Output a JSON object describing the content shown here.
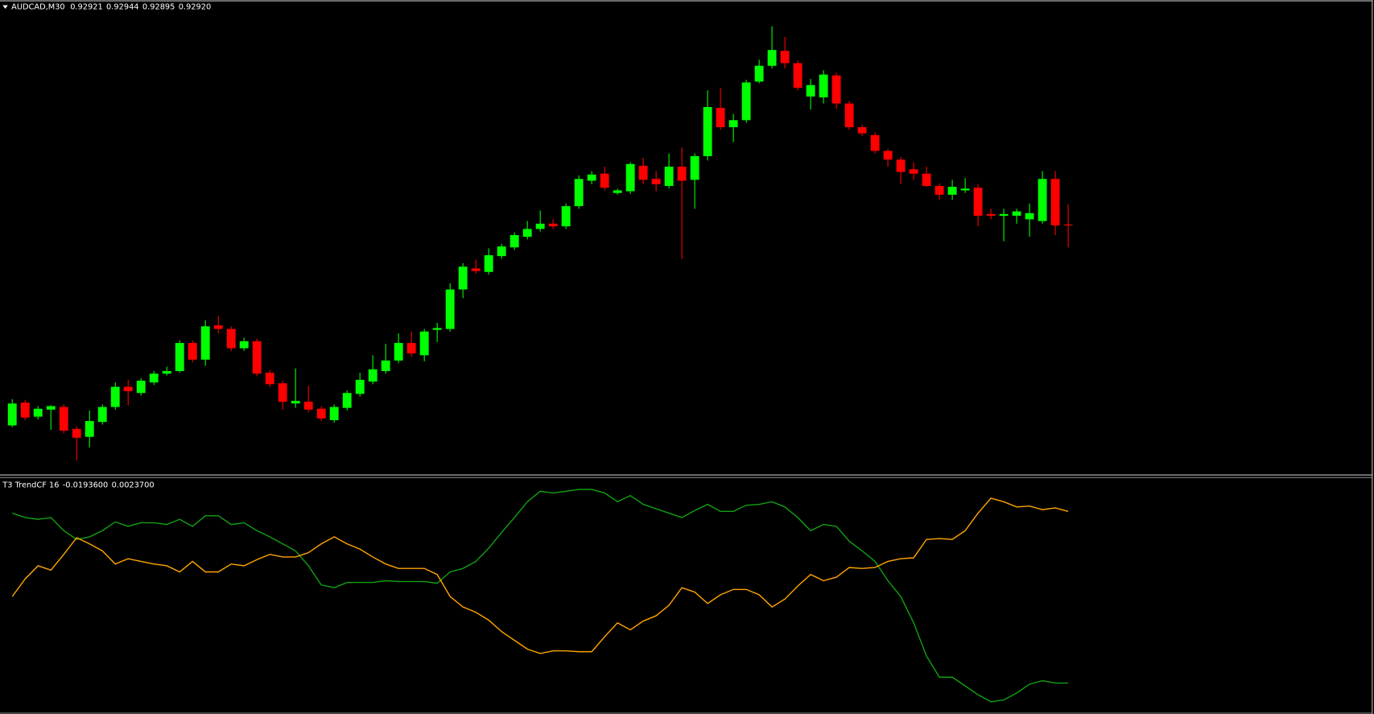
{
  "chart_data": [
    {
      "type": "candlestick",
      "title": "AUDCAD,M30",
      "header_values": [
        0.92921,
        0.92944,
        0.92895,
        {
          "value": 0.9292,
          "label": "0.92920"
        }
      ],
      "up_color": "#00ff00",
      "down_color": "#ff0000",
      "ylim": [
        0.92637,
        0.93177
      ],
      "open": [
        0.92692,
        0.92718,
        0.92702,
        0.9271,
        0.92713,
        0.92688,
        0.92679,
        0.92696,
        0.92713,
        0.92736,
        0.92729,
        0.92741,
        0.92751,
        0.92754,
        0.92786,
        0.92767,
        0.92806,
        0.92802,
        0.9278,
        0.92788,
        0.92752,
        0.9274,
        0.92717,
        0.92719,
        0.92711,
        0.92698,
        0.92712,
        0.92728,
        0.92742,
        0.92754,
        0.92766,
        0.92786,
        0.92772,
        0.92801,
        0.92802,
        0.92847,
        0.92871,
        0.92867,
        0.92885,
        0.92895,
        0.92907,
        0.92916,
        0.92922,
        0.92919,
        0.92942,
        0.92971,
        0.92979,
        0.92957,
        0.92959,
        0.92988,
        0.92973,
        0.92965,
        0.92987,
        0.92972,
        0.92999,
        0.93054,
        0.93032,
        0.9304,
        0.93084,
        0.93102,
        0.93119,
        0.93105,
        0.93067,
        0.93066,
        0.93091,
        0.93059,
        0.93032,
        0.93023,
        0.93005,
        0.92995,
        0.92984,
        0.92979,
        0.92965,
        0.92955,
        0.9296,
        0.92963,
        0.92933,
        0.92931,
        0.92931,
        0.92927,
        0.92925,
        0.92973,
        0.92921
      ],
      "high": [
        0.92722,
        0.92721,
        0.92714,
        0.92715,
        0.92716,
        0.92691,
        0.92709,
        0.92716,
        0.92741,
        0.92744,
        0.92746,
        0.92754,
        0.92759,
        0.92789,
        0.92789,
        0.92812,
        0.92817,
        0.92805,
        0.92792,
        0.92791,
        0.92755,
        0.92743,
        0.92757,
        0.92737,
        0.92714,
        0.92716,
        0.92732,
        0.92752,
        0.92772,
        0.92785,
        0.92797,
        0.92799,
        0.92802,
        0.92809,
        0.92854,
        0.92877,
        0.92881,
        0.92894,
        0.92899,
        0.92912,
        0.92925,
        0.92937,
        0.92927,
        0.92945,
        0.92977,
        0.92982,
        0.92987,
        0.92962,
        0.92992,
        0.92997,
        0.92982,
        0.93002,
        0.93009,
        0.93002,
        0.93074,
        0.93077,
        0.93047,
        0.93086,
        0.93109,
        0.93147,
        0.93135,
        0.93108,
        0.93087,
        0.93097,
        0.93094,
        0.93062,
        0.93035,
        0.93026,
        0.93007,
        0.92998,
        0.92992,
        0.92987,
        0.92968,
        0.92972,
        0.92974,
        0.92967,
        0.92939,
        0.92939,
        0.92939,
        0.92945,
        0.92982,
        0.92982,
        0.92944
      ],
      "low": [
        0.9269,
        0.92698,
        0.92699,
        0.92687,
        0.92683,
        0.92652,
        0.92667,
        0.92693,
        0.9271,
        0.92715,
        0.92726,
        0.92738,
        0.92749,
        0.92752,
        0.92764,
        0.9276,
        0.92797,
        0.92777,
        0.92777,
        0.92748,
        0.92736,
        0.9271,
        0.92712,
        0.92707,
        0.92697,
        0.92695,
        0.92709,
        0.92725,
        0.92739,
        0.92751,
        0.92763,
        0.9277,
        0.92765,
        0.92787,
        0.92799,
        0.92837,
        0.92865,
        0.92864,
        0.92882,
        0.92892,
        0.92904,
        0.92913,
        0.92916,
        0.92916,
        0.92939,
        0.92967,
        0.9296,
        0.92955,
        0.92956,
        0.92967,
        0.92959,
        0.92962,
        0.92882,
        0.92939,
        0.92994,
        0.93029,
        0.93015,
        0.93037,
        0.93082,
        0.93099,
        0.93099,
        0.93074,
        0.93052,
        0.93059,
        0.93053,
        0.93029,
        0.93022,
        0.93002,
        0.92987,
        0.92967,
        0.92972,
        0.92964,
        0.92949,
        0.92949,
        0.92957,
        0.92919,
        0.92927,
        0.92902,
        0.92922,
        0.92907,
        0.92922,
        0.92909,
        0.92895
      ],
      "close": [
        0.92717,
        0.92701,
        0.92711,
        0.92714,
        0.92686,
        0.92678,
        0.92697,
        0.92713,
        0.92736,
        0.92731,
        0.92743,
        0.92751,
        0.92754,
        0.92786,
        0.92767,
        0.92805,
        0.92802,
        0.9278,
        0.92788,
        0.92751,
        0.92739,
        0.92719,
        0.9272,
        0.9271,
        0.927,
        0.92713,
        0.92729,
        0.92744,
        0.92756,
        0.92766,
        0.92786,
        0.92774,
        0.92799,
        0.92803,
        0.92847,
        0.92873,
        0.92868,
        0.92886,
        0.92896,
        0.92909,
        0.92916,
        0.92922,
        0.92919,
        0.92942,
        0.92973,
        0.92978,
        0.92963,
        0.9296,
        0.9299,
        0.92972,
        0.92967,
        0.92987,
        0.92971,
        0.92999,
        0.93055,
        0.93032,
        0.9304,
        0.93083,
        0.93102,
        0.9312,
        0.93105,
        0.93077,
        0.9308,
        0.93092,
        0.93059,
        0.93032,
        0.93025,
        0.93005,
        0.92995,
        0.92981,
        0.92979,
        0.92965,
        0.92955,
        0.92964,
        0.92962,
        0.92931,
        0.92931,
        0.92933,
        0.92936,
        0.92934,
        0.92973,
        0.9292,
        0.9292
      ]
    },
    {
      "type": "line",
      "title": "T3 TrendCF 16",
      "header_values": [
        {
          "value": -0.01936,
          "label": "-0.0193600"
        },
        {
          "value": 0.00237,
          "label": "0.0023700"
        }
      ],
      "ylim": [
        -0.02305,
        0.00659
      ],
      "series": [
        {
          "color": "#11a011",
          "values": [
            0.00215,
            0.00159,
            0.00137,
            0.00159,
            -7e-05,
            -0.00118,
            -0.00085,
            -7e-05,
            0.00104,
            0.00048,
            0.00093,
            0.00093,
            0.00071,
            0.00137,
            0.00048,
            0.00182,
            0.00182,
            0.00071,
            0.00093,
            -7e-05,
            -0.00085,
            -0.00174,
            -0.00263,
            -0.00451,
            -0.00695,
            -0.00729,
            -0.00662,
            -0.00662,
            -0.00662,
            -0.0064,
            -0.00651,
            -0.00651,
            -0.00651,
            -0.00673,
            -0.00529,
            -0.00485,
            -0.00396,
            -0.00229,
            -0.00029,
            0.00159,
            0.00359,
            0.00492,
            0.0047,
            0.00492,
            0.00515,
            0.00515,
            0.0047,
            0.00359,
            0.00437,
            0.00326,
            0.0027,
            0.00215,
            0.00159,
            0.00248,
            0.00326,
            0.00237,
            0.00237,
            0.00315,
            0.00326,
            0.00359,
            0.00293,
            0.00159,
            -7e-05,
            0.00071,
            0.00048,
            -0.0014,
            -0.00263,
            -0.00396,
            -0.0064,
            -0.0084,
            -0.01173,
            -0.01595,
            -0.01861,
            -0.01861,
            -0.01972,
            -0.02083,
            -0.02172,
            -0.0215,
            -0.02061,
            -0.0195,
            -0.01905,
            -0.01936,
            -0.01936
          ]
        },
        {
          "color": "#ffa500",
          "values": [
            -0.0084,
            -0.00618,
            -0.00451,
            -0.00507,
            -0.00307,
            -0.00096,
            -0.00174,
            -0.00263,
            -0.00429,
            -0.00362,
            -0.00396,
            -0.00429,
            -0.00451,
            -0.00529,
            -0.00396,
            -0.00529,
            -0.00529,
            -0.00429,
            -0.00451,
            -0.00374,
            -0.00307,
            -0.0034,
            -0.0034,
            -0.00285,
            -0.00174,
            -0.00085,
            -0.00174,
            -0.0024,
            -0.0034,
            -0.00429,
            -0.00485,
            -0.00485,
            -0.00485,
            -0.00562,
            -0.0084,
            -0.00973,
            -0.0104,
            -0.01139,
            -0.01284,
            -0.01395,
            -0.01506,
            -0.01561,
            -0.01528,
            -0.01528,
            -0.01539,
            -0.01539,
            -0.0135,
            -0.01173,
            -0.01262,
            -0.01151,
            -0.01084,
            -0.00951,
            -0.00729,
            -0.00784,
            -0.00929,
            -0.00818,
            -0.00751,
            -0.00751,
            -0.00818,
            -0.00973,
            -0.00873,
            -0.00707,
            -0.00562,
            -0.0064,
            -0.00596,
            -0.00473,
            -0.00485,
            -0.00473,
            -0.00396,
            -0.00362,
            -0.00351,
            -0.00118,
            -0.00107,
            -0.00118,
            -7e-05,
            0.00215,
            0.00404,
            0.00359,
            0.00293,
            0.00304,
            0.00259,
            0.00281,
            0.00237
          ]
        }
      ]
    }
  ]
}
